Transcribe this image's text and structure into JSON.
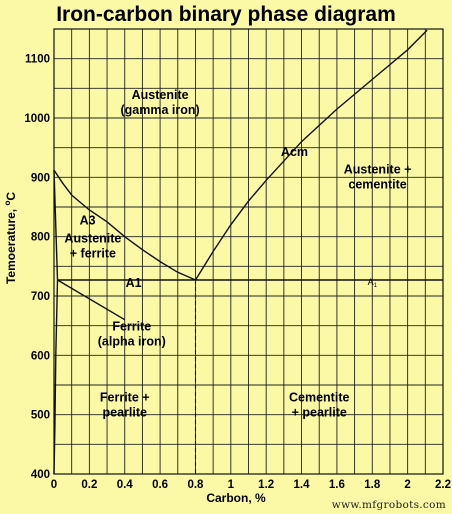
{
  "chart_data": {
    "type": "line",
    "title": "Iron-carbon binary phase diagram",
    "xlabel": "Carbon, %",
    "ylabel_main": "Temoerature, ",
    "ylabel_sup": "o",
    "ylabel_unit": "C",
    "xlim": [
      0,
      2.2
    ],
    "ylim": [
      400,
      1150
    ],
    "x_ticks": [
      {
        "v": 0,
        "label": "0"
      },
      {
        "v": 0.2,
        "label": "0.2"
      },
      {
        "v": 0.4,
        "label": "0.4"
      },
      {
        "v": 0.6,
        "label": "0.6"
      },
      {
        "v": 0.8,
        "label": "0.8"
      },
      {
        "v": 1.0,
        "label": "1"
      },
      {
        "v": 1.2,
        "label": "1.2"
      },
      {
        "v": 1.4,
        "label": "1.4"
      },
      {
        "v": 1.6,
        "label": "1.6"
      },
      {
        "v": 1.8,
        "label": "1.8"
      },
      {
        "v": 2.0,
        "label": "2"
      },
      {
        "v": 2.2,
        "label": "2.2"
      }
    ],
    "y_ticks": [
      {
        "v": 400,
        "label": "400"
      },
      {
        "v": 500,
        "label": "500"
      },
      {
        "v": 600,
        "label": "600"
      },
      {
        "v": 700,
        "label": "700"
      },
      {
        "v": 800,
        "label": "800"
      },
      {
        "v": 900,
        "label": "900"
      },
      {
        "v": 1000,
        "label": "1000"
      },
      {
        "v": 1100,
        "label": "1100"
      }
    ],
    "grid": true,
    "series": [
      {
        "name": "A3",
        "x": [
          0,
          0.05,
          0.1,
          0.2,
          0.3,
          0.4,
          0.5,
          0.6,
          0.7,
          0.8
        ],
        "y": [
          912,
          890,
          870,
          845,
          825,
          800,
          778,
          758,
          740,
          727
        ]
      },
      {
        "name": "Acm",
        "x": [
          0.8,
          0.9,
          1.0,
          1.1,
          1.2,
          1.4,
          1.6,
          1.8,
          2.0,
          2.11
        ],
        "y": [
          727,
          775,
          820,
          860,
          895,
          960,
          1015,
          1065,
          1115,
          1148
        ]
      },
      {
        "name": "A1",
        "x": [
          0.02,
          0.8,
          2.2
        ],
        "y": [
          727,
          727,
          727
        ]
      },
      {
        "name": "",
        "x": [
          0,
          0.02,
          0.01,
          0.005,
          0
        ],
        "y": [
          912,
          727,
          600,
          480,
          400
        ]
      },
      {
        "name": "",
        "x": [
          0.02,
          0.4
        ],
        "y": [
          727,
          660
        ]
      }
    ],
    "dashed_lines": [
      {
        "x": [
          0.8,
          0.8
        ],
        "y": [
          727,
          400
        ]
      }
    ],
    "regions": [
      {
        "label": "Austenite",
        "label2": "(gamma iron)",
        "x": 0.6,
        "y": 1020
      },
      {
        "label": "Austenite +",
        "label2": "cementite",
        "x": 1.83,
        "y": 895
      },
      {
        "label": "Austenite",
        "label2": "+ ferrite",
        "x": 0.22,
        "y": 778
      },
      {
        "label": "Ferrite",
        "label2": "(alpha iron)",
        "x": 0.44,
        "y": 630
      },
      {
        "label": "Ferrite +",
        "label2": "pearlite",
        "x": 0.4,
        "y": 510
      },
      {
        "label": "Cementite",
        "label2": "+ pearlite",
        "x": 1.5,
        "y": 510
      }
    ],
    "line_labels": [
      {
        "text": "A3",
        "x": 0.19,
        "y": 827
      },
      {
        "text": "Acm",
        "x": 1.36,
        "y": 943
      },
      {
        "text": "A1",
        "x": 0.45,
        "y": 722
      },
      {
        "text": "A",
        "sub": "1",
        "x": 1.8,
        "y": 725
      }
    ]
  },
  "watermark": "www.mfgrobots.com",
  "colors": {
    "background": "#fbf9a6",
    "ink": "#111111"
  }
}
